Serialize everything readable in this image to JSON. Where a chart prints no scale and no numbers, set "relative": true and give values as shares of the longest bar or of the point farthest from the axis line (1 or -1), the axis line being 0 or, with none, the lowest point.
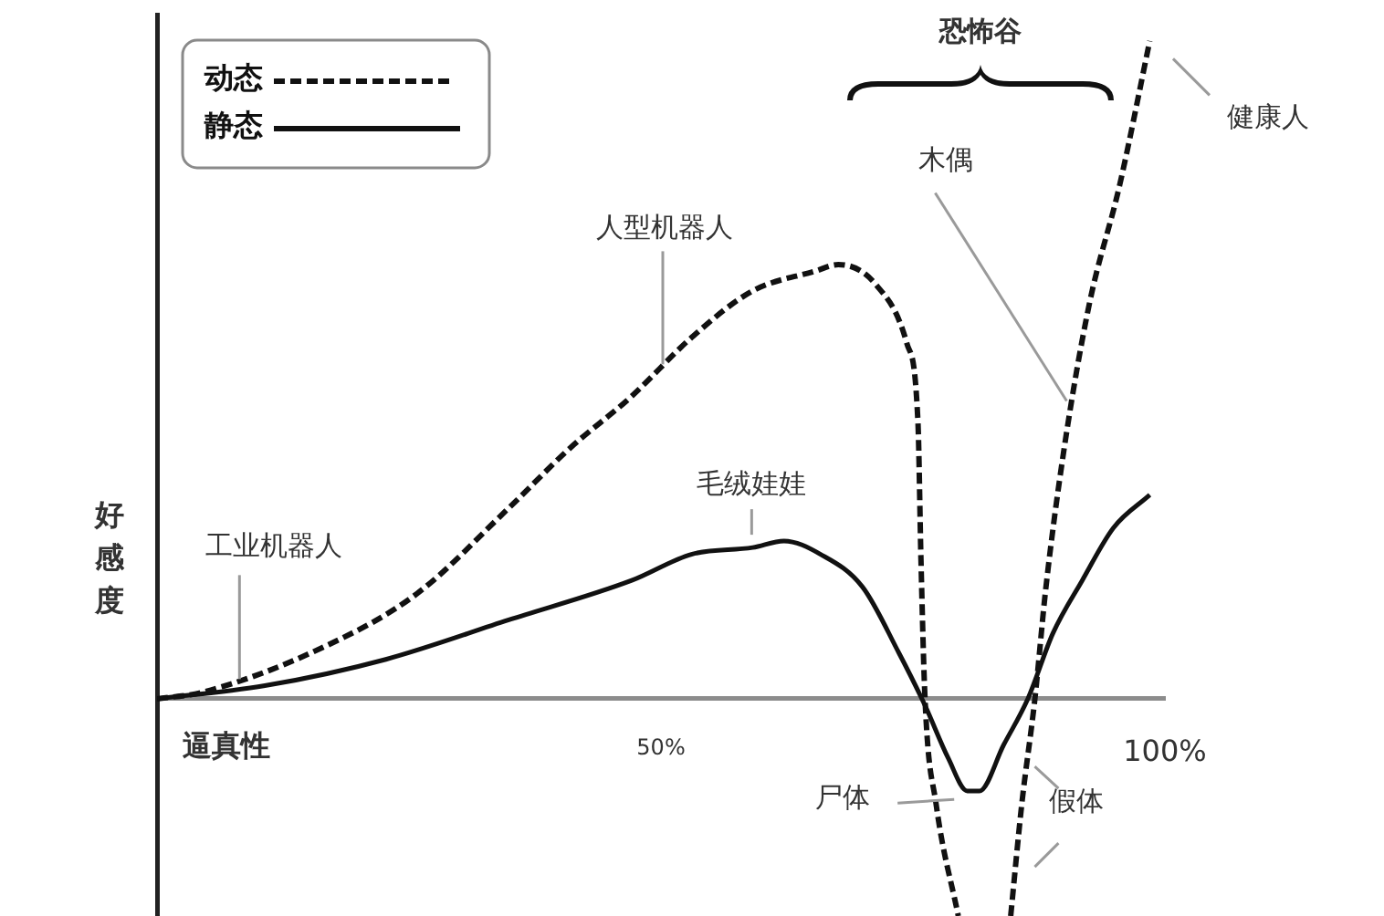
{
  "chart_data": {
    "type": "line",
    "xlabel": "逼真性",
    "ylabel": "好感度",
    "relative": true,
    "xlim": [
      0,
      100
    ],
    "xticks": [
      {
        "value": 50,
        "label": "50%"
      },
      {
        "value": 100,
        "label": "100%"
      }
    ],
    "legend": "top left",
    "marker": "none",
    "series": [
      {
        "name": "动态",
        "color": "#111111",
        "line_style": "dashed",
        "x": [
          0,
          4.5,
          16.7,
          25.8,
          34.9,
          40.9,
          47.1,
          53.1,
          59.1,
          65.3,
          67.6,
          71.3,
          74.4,
          75.5,
          75.8,
          76.2,
          77.3,
          79.5,
          82,
          84.7,
          85.8,
          87.1,
          88.2,
          90,
          92.5,
          95.5,
          98.5
        ],
        "values": [
          0,
          0.01,
          0.08,
          0.16,
          0.29,
          0.38,
          0.46,
          0.55,
          0.62,
          0.65,
          0.66,
          0.63,
          0.54,
          0.42,
          0.21,
          0,
          -0.16,
          -0.33,
          null,
          -0.33,
          -0.16,
          0,
          0.17,
          0.38,
          0.6,
          0.78,
          1
        ]
      },
      {
        "name": "静态",
        "color": "#111111",
        "line_style": "solid",
        "x": [
          0,
          10.7,
          22.7,
          34.9,
          47.1,
          53.1,
          59.1,
          62.2,
          65.8,
          70,
          73.6,
          76.2,
          78.5,
          80.4,
          81.6,
          84,
          86.4,
          88.9,
          91.8,
          94.9,
          98.5
        ],
        "values": [
          0,
          0.02,
          0.06,
          0.12,
          0.18,
          0.22,
          0.23,
          0.24,
          0.22,
          0.17,
          0.07,
          -0.01,
          -0.09,
          -0.14,
          -0.14,
          -0.07,
          0,
          0.1,
          0.18,
          0.26,
          0.31
        ]
      }
    ],
    "annotations": [
      {
        "text": "工业机器人",
        "x": 8,
        "y": 0.03
      },
      {
        "text": "人型机器人",
        "x": 50,
        "y": 0.5
      },
      {
        "text": "毛绒娃娃",
        "x": 59,
        "y": 0.23
      },
      {
        "text": "木偶",
        "x": 90.8,
        "y": 0.45
      },
      {
        "text": "健康人",
        "x": 99,
        "y": 0.97
      },
      {
        "text": "尸体",
        "x": 80,
        "y": -0.15
      },
      {
        "text": "假体",
        "x": 86,
        "y": -0.1
      },
      "恐怖谷"
    ]
  }
}
